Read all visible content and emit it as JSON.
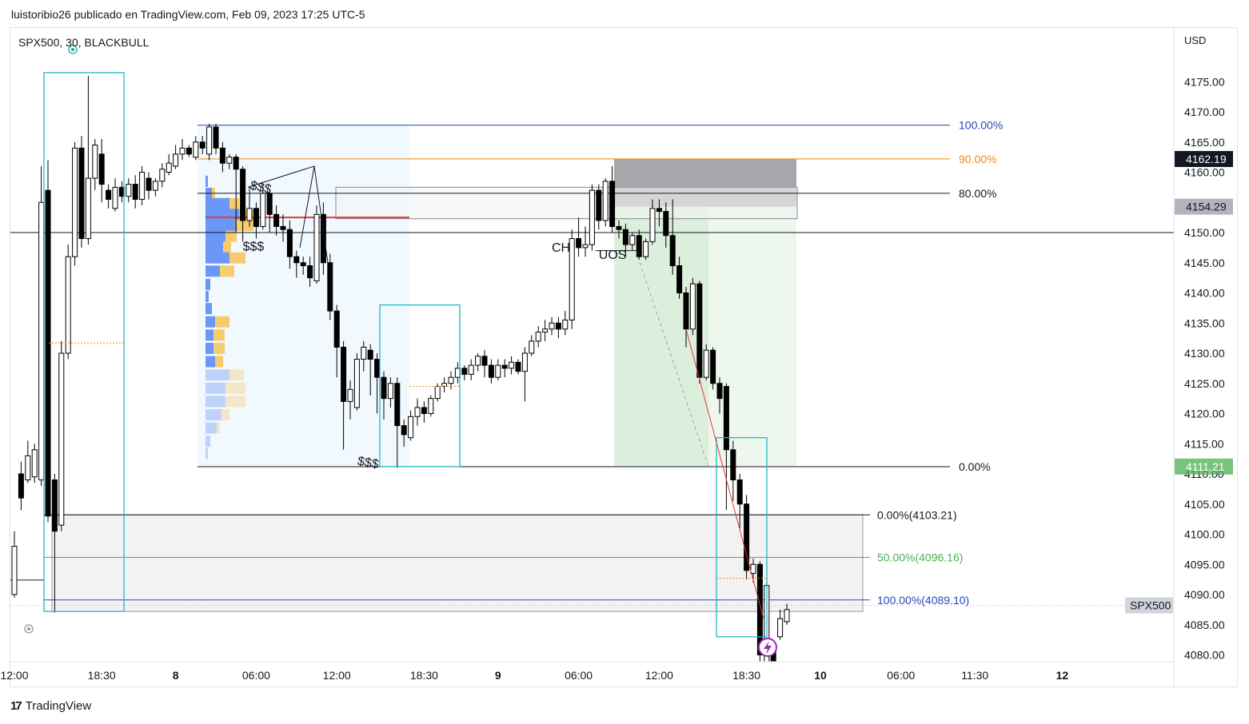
{
  "header": {
    "caption": "luistoribio26 publicado en TradingView.com, Feb 09, 2023 17:25 UTC-5",
    "symbol_line": "SPX500, 30, BLACKBULL"
  },
  "footer": {
    "brand": "TradingView",
    "brand_icon": "tradingview-logo-icon"
  },
  "colors": {
    "bull_candle": "#ffffff",
    "bear_candle": "#000000",
    "fib_100": "#2a45b8",
    "fib_90": "#f0880a",
    "fib_50": "#4caf50",
    "long_zone": "#4caf50",
    "volume_profile_blue": "#5b8cf7",
    "volume_profile_yellow": "#f7c75c",
    "cyan_box": "#22b5c9"
  },
  "chart_data": {
    "type": "candlestick",
    "currency_label": "USD",
    "ylim": [
      4078,
      4180
    ],
    "y_ticks": [
      "4175.00",
      "4170.00",
      "4165.00",
      "4160.00",
      "4155.00",
      "4150.00",
      "4145.00",
      "4140.00",
      "4135.00",
      "4130.00",
      "4125.00",
      "4120.00",
      "4115.00",
      "4110.00",
      "4105.00",
      "4100.00",
      "4095.00",
      "4090.00",
      "4085.00",
      "4080.00"
    ],
    "x_ticks": [
      {
        "label": "12:00",
        "bar": 0,
        "bold": false
      },
      {
        "label": "18:30",
        "bar": 13,
        "bold": false
      },
      {
        "label": "8",
        "bar": 24,
        "bold": true
      },
      {
        "label": "06:00",
        "bar": 36,
        "bold": false
      },
      {
        "label": "12:00",
        "bar": 48,
        "bold": false
      },
      {
        "label": "18:30",
        "bar": 61,
        "bold": false
      },
      {
        "label": "9",
        "bar": 72,
        "bold": true
      },
      {
        "label": "06:00",
        "bar": 84,
        "bold": false
      },
      {
        "label": "12:00",
        "bar": 96,
        "bold": false
      },
      {
        "label": "18:30",
        "bar": 109,
        "bold": false
      },
      {
        "label": "10",
        "bar": 120,
        "bold": true
      },
      {
        "label": "06:00",
        "bar": 132,
        "bold": false
      },
      {
        "label": "11:30",
        "bar": 143,
        "bold": false
      },
      {
        "label": "12",
        "bar": 156,
        "bold": true
      }
    ],
    "price_badges": [
      {
        "label": "4162.19",
        "value": 4162.19,
        "style": "dark"
      },
      {
        "label": "4154.29",
        "value": 4154.29,
        "style": "grey"
      },
      {
        "label": "4111.21",
        "value": 4111.21,
        "style": "green"
      }
    ],
    "symbol_badge": {
      "label": "SPX500",
      "value": 4088.2
    },
    "fib_top": [
      {
        "label": "100.00%",
        "value": 4167.8,
        "color": "#2a45b8"
      },
      {
        "label": "90.00%",
        "value": 4162.2,
        "color": "#f0880a"
      },
      {
        "label": "80.00%",
        "value": 4156.5,
        "color": "#131722"
      },
      {
        "label": "0.00%",
        "value": 4111.2,
        "color": "#131722"
      }
    ],
    "fib_bottom": [
      {
        "label": "0.00%(4103.21)",
        "value": 4103.21,
        "color": "#131722"
      },
      {
        "label": "50.00%(4096.16)",
        "value": 4096.16,
        "color": "#4caf50"
      },
      {
        "label": "100.00%(4089.10)",
        "value": 4089.1,
        "color": "#2a45b8"
      }
    ],
    "annotations": [
      {
        "text": "$$$",
        "bar": 35,
        "price": 4157.2,
        "rot": 12
      },
      {
        "text": "$$$",
        "bar": 34,
        "price": 4147.0,
        "rot": 0
      },
      {
        "text": "$$$",
        "bar": 51,
        "price": 4111.5,
        "rot": 10
      },
      {
        "text": "CH",
        "bar": 80,
        "price": 4146.8,
        "rot": 0
      },
      {
        "text": "UOS",
        "bar": 87,
        "price": 4145.6,
        "rot": 0
      }
    ],
    "candles": [
      [
        4090.0,
        4098.0,
        4089.5,
        4100.5
      ],
      [
        4110.0,
        4106.0,
        4104.0,
        4112.0
      ],
      [
        4109.0,
        4113.0,
        4108.5,
        4115.5
      ],
      [
        4109.5,
        4114.0,
        4108.5,
        4115.0
      ],
      [
        4109.0,
        4155.0,
        4108.0,
        4161.0
      ],
      [
        4157.0,
        4103.0,
        4102.0,
        4162.0
      ],
      [
        4109.0,
        4100.5,
        4087.0,
        4110.0
      ],
      [
        4101.5,
        4130.0,
        4100.5,
        4132.0
      ],
      [
        4130.0,
        4146.0,
        4129.0,
        4148.0
      ],
      [
        4146.0,
        4164.0,
        4144.5,
        4165.0
      ],
      [
        4164.0,
        4149.0,
        4147.5,
        4166.0
      ],
      [
        4149.0,
        4159.0,
        4148.0,
        4176.0
      ],
      [
        4159.0,
        4164.5,
        4157.0,
        4165.5
      ],
      [
        4163.0,
        4158.0,
        4155.0,
        4165.5
      ],
      [
        4157.0,
        4155.5,
        4154.0,
        4158.0
      ],
      [
        4154.0,
        4157.5,
        4153.5,
        4159.0
      ],
      [
        4157.5,
        4156.0,
        4155.0,
        4158.5
      ],
      [
        4156.0,
        4158.0,
        4155.0,
        4159.0
      ],
      [
        4158.0,
        4155.5,
        4154.0,
        4159.5
      ],
      [
        4155.5,
        4160.0,
        4154.5,
        4161.0
      ],
      [
        4159.0,
        4157.0,
        4155.5,
        4160.0
      ],
      [
        4157.0,
        4158.5,
        4156.0,
        4159.0
      ],
      [
        4158.5,
        4160.5,
        4157.5,
        4161.5
      ],
      [
        4160.0,
        4161.5,
        4159.5,
        4163.0
      ],
      [
        4161.0,
        4163.0,
        4160.5,
        4164.5
      ],
      [
        4163.0,
        4164.0,
        4162.0,
        4165.5
      ],
      [
        4164.0,
        4163.0,
        4162.5,
        4164.5
      ],
      [
        4162.5,
        4165.0,
        4162.0,
        4166.0
      ],
      [
        4165.0,
        4164.0,
        4163.0,
        4166.0
      ],
      [
        4163.0,
        4167.5,
        4162.0,
        4168.0
      ],
      [
        4167.5,
        4164.0,
        4163.0,
        4168.0
      ],
      [
        4164.0,
        4161.5,
        4160.0,
        4165.0
      ],
      [
        4161.5,
        4162.5,
        4160.5,
        4163.0
      ],
      [
        4162.5,
        4160.5,
        4150.0,
        4163.0
      ],
      [
        4160.5,
        4152.0,
        4148.5,
        4161.0
      ],
      [
        4152.0,
        4154.0,
        4151.0,
        4157.5
      ],
      [
        4154.0,
        4151.0,
        4149.0,
        4155.0
      ],
      [
        4151.0,
        4156.5,
        4150.5,
        4158.0
      ],
      [
        4156.5,
        4153.0,
        4150.0,
        4157.0
      ],
      [
        4153.0,
        4151.0,
        4149.5,
        4154.5
      ],
      [
        4151.0,
        4150.5,
        4148.5,
        4153.0
      ],
      [
        4150.5,
        4146.0,
        4144.0,
        4152.0
      ],
      [
        4146.0,
        4145.0,
        4142.5,
        4147.0
      ],
      [
        4145.0,
        4144.5,
        4143.0,
        4146.0
      ],
      [
        4144.5,
        4142.5,
        4141.0,
        4146.0
      ],
      [
        4142.0,
        4153.0,
        4141.5,
        4154.5
      ],
      [
        4153.0,
        4145.0,
        4143.0,
        4155.0
      ],
      [
        4145.0,
        4137.0,
        4135.5,
        4146.5
      ],
      [
        4137.0,
        4131.0,
        4126.0,
        4138.0
      ],
      [
        4131.0,
        4122.0,
        4114.0,
        4132.0
      ],
      [
        4122.0,
        4124.0,
        4119.0,
        4125.5
      ],
      [
        4121.0,
        4129.0,
        4120.5,
        4130.0
      ],
      [
        4129.0,
        4131.0,
        4127.0,
        4132.0
      ],
      [
        4130.5,
        4129.0,
        4123.0,
        4131.5
      ],
      [
        4129.0,
        4126.0,
        4120.0,
        4130.0
      ],
      [
        4126.0,
        4122.5,
        4119.0,
        4127.0
      ],
      [
        4122.5,
        4125.0,
        4121.0,
        4126.0
      ],
      [
        4125.0,
        4118.0,
        4111.0,
        4126.0
      ],
      [
        4118.0,
        4116.5,
        4114.5,
        4119.0
      ],
      [
        4116.0,
        4119.5,
        4115.5,
        4120.5
      ],
      [
        4119.5,
        4121.0,
        4118.0,
        4122.5
      ],
      [
        4121.0,
        4120.0,
        4118.5,
        4122.0
      ],
      [
        4120.0,
        4122.5,
        4119.5,
        4123.0
      ],
      [
        4122.5,
        4124.5,
        4122.0,
        4125.0
      ],
      [
        4124.5,
        4125.0,
        4123.5,
        4126.0
      ],
      [
        4125.0,
        4126.0,
        4124.0,
        4127.0
      ],
      [
        4126.0,
        4127.5,
        4125.0,
        4128.5
      ],
      [
        4127.5,
        4126.5,
        4125.5,
        4128.0
      ],
      [
        4126.5,
        4128.0,
        4125.5,
        4129.0
      ],
      [
        4128.0,
        4129.5,
        4127.0,
        4130.0
      ],
      [
        4129.5,
        4128.0,
        4126.0,
        4130.5
      ],
      [
        4128.0,
        4126.0,
        4125.0,
        4129.0
      ],
      [
        4126.0,
        4128.0,
        4125.5,
        4129.0
      ],
      [
        4128.0,
        4127.5,
        4126.0,
        4129.0
      ],
      [
        4127.5,
        4128.5,
        4126.5,
        4129.5
      ],
      [
        4128.5,
        4127.0,
        4126.5,
        4129.0
      ],
      [
        4127.0,
        4130.0,
        4122.0,
        4131.0
      ],
      [
        4130.0,
        4132.0,
        4129.5,
        4133.0
      ],
      [
        4132.0,
        4133.5,
        4131.0,
        4134.5
      ],
      [
        4133.5,
        4134.0,
        4132.0,
        4135.5
      ],
      [
        4134.0,
        4135.0,
        4133.0,
        4136.0
      ],
      [
        4135.0,
        4134.0,
        4132.5,
        4136.0
      ],
      [
        4134.0,
        4135.5,
        4133.0,
        4137.0
      ],
      [
        4135.5,
        4149.0,
        4134.0,
        4150.5
      ],
      [
        4149.0,
        4147.5,
        4146.0,
        4152.5
      ],
      [
        4147.5,
        4148.0,
        4146.0,
        4151.0
      ],
      [
        4148.0,
        4157.0,
        4147.0,
        4158.0
      ],
      [
        4157.0,
        4152.0,
        4150.5,
        4158.0
      ],
      [
        4152.0,
        4158.5,
        4151.0,
        4159.0
      ],
      [
        4158.5,
        4151.0,
        4150.0,
        4161.0
      ],
      [
        4151.0,
        4150.5,
        4149.0,
        4152.0
      ],
      [
        4150.5,
        4148.0,
        4146.0,
        4151.5
      ],
      [
        4148.0,
        4149.5,
        4147.0,
        4150.0
      ],
      [
        4149.5,
        4146.0,
        4145.5,
        4150.5
      ],
      [
        4146.0,
        4148.5,
        4145.5,
        4149.0
      ],
      [
        4148.5,
        4154.0,
        4148.0,
        4155.5
      ],
      [
        4154.0,
        4153.5,
        4151.0,
        4155.5
      ],
      [
        4153.5,
        4149.5,
        4147.5,
        4155.0
      ],
      [
        4149.5,
        4144.5,
        4143.0,
        4155.5
      ],
      [
        4144.5,
        4140.0,
        4139.0,
        4146.0
      ],
      [
        4140.0,
        4134.0,
        4131.0,
        4141.0
      ],
      [
        4134.0,
        4141.5,
        4133.0,
        4142.5
      ],
      [
        4141.5,
        4126.0,
        4125.0,
        4142.0
      ],
      [
        4126.0,
        4130.5,
        4125.5,
        4131.5
      ],
      [
        4130.5,
        4125.0,
        4124.0,
        4131.0
      ],
      [
        4125.0,
        4122.5,
        4120.0,
        4126.0
      ],
      [
        4124.5,
        4114.0,
        4104.0,
        4125.0
      ],
      [
        4114.0,
        4109.0,
        4105.5,
        4115.5
      ],
      [
        4109.0,
        4105.0,
        4101.0,
        4110.0
      ],
      [
        4105.0,
        4094.0,
        4092.5,
        4106.5
      ],
      [
        4093.5,
        4095.0,
        4092.0,
        4096.0
      ],
      [
        4095.0,
        4080.0,
        4078.0,
        4095.5
      ],
      [
        4078.0,
        4091.5,
        4076.0,
        4092.0
      ],
      [
        4081.0,
        4079.0,
        4077.0,
        4082.0
      ],
      [
        4083.0,
        4086.0,
        4082.5,
        4087.5
      ],
      [
        4085.5,
        4087.5,
        4085.0,
        4088.5
      ]
    ]
  }
}
